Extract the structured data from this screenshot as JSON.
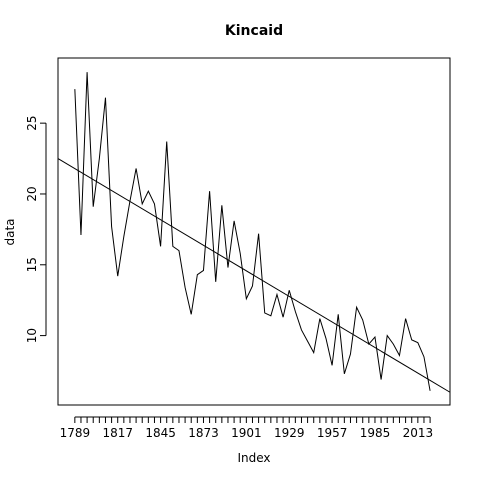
{
  "chart_data": {
    "type": "line",
    "title": "Kincaid",
    "x_label": "Index",
    "y_label": "data",
    "x": [
      1789,
      1793,
      1797,
      1801,
      1805,
      1809,
      1813,
      1817,
      1821,
      1825,
      1829,
      1833,
      1837,
      1841,
      1845,
      1849,
      1853,
      1857,
      1861,
      1865,
      1869,
      1873,
      1877,
      1881,
      1885,
      1889,
      1893,
      1897,
      1901,
      1905,
      1909,
      1913,
      1917,
      1921,
      1925,
      1929,
      1933,
      1937,
      1941,
      1945,
      1949,
      1953,
      1957,
      1961,
      1965,
      1969,
      1973,
      1977,
      1981,
      1985,
      1989,
      1993,
      1997,
      2001,
      2005,
      2009,
      2013,
      2017,
      2021
    ],
    "series": [
      {
        "color": "#000000",
        "values": [
          27.4,
          17.1,
          28.6,
          19.1,
          22.5,
          26.8,
          17.7,
          14.2,
          17.0,
          19.5,
          21.8,
          19.3,
          20.2,
          19.3,
          16.3,
          23.7,
          16.3,
          16.0,
          13.4,
          11.5,
          14.3,
          14.6,
          20.2,
          13.8,
          19.2,
          14.8,
          18.1,
          15.8,
          12.6,
          13.5,
          17.2,
          11.6,
          11.4,
          12.9,
          11.3,
          13.2,
          11.7,
          10.4,
          9.6,
          8.8,
          11.2,
          9.8,
          7.9,
          11.5,
          7.3,
          8.7,
          12.0,
          11.1,
          9.4,
          9.9,
          6.9,
          10.0,
          9.4,
          8.6,
          11.2,
          9.7,
          9.5,
          8.5,
          6.1
        ]
      }
    ],
    "trend_line": {
      "x": [
        1778,
        2034
      ],
      "y": [
        22.5,
        6.0
      ]
    },
    "xlim": [
      1778,
      2034
    ],
    "ylim": [
      5.1,
      29.6
    ],
    "xticks": [
      1789,
      1817,
      1845,
      1873,
      1901,
      1929,
      1957,
      1985,
      2013
    ],
    "xticks_minor": [
      1789,
      1793,
      1797,
      1801,
      1805,
      1809,
      1813,
      1817,
      1821,
      1825,
      1829,
      1833,
      1837,
      1841,
      1845,
      1849,
      1853,
      1857,
      1861,
      1865,
      1869,
      1873,
      1877,
      1881,
      1885,
      1889,
      1893,
      1897,
      1901,
      1905,
      1909,
      1913,
      1917,
      1921,
      1925,
      1929,
      1933,
      1937,
      1941,
      1945,
      1949,
      1953,
      1957,
      1961,
      1965,
      1969,
      1973,
      1977,
      1981,
      1985,
      1989,
      1993,
      1997,
      2001,
      2005,
      2009,
      2013,
      2017,
      2021
    ],
    "yticks": [
      10,
      15,
      20,
      25
    ]
  }
}
